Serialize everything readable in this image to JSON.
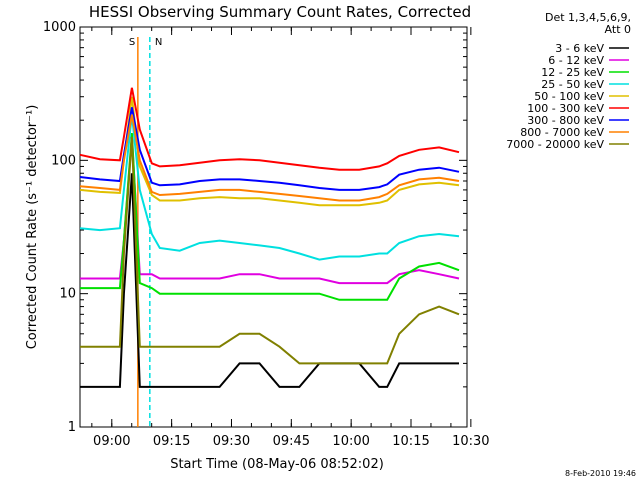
{
  "chart_data": {
    "type": "line",
    "title": "HESSI Observing Summary Count Rates, Corrected",
    "xlabel": "Start Time (08-May-06 08:52:02)",
    "ylabel": "Corrected Count Rate (s⁻¹ detector⁻¹)",
    "yscale": "log",
    "ylim": [
      1,
      1000
    ],
    "xlim_minutes": [
      0,
      97
    ],
    "x_tick_labels": [
      "09:00",
      "09:15",
      "09:30",
      "09:45",
      "10:00",
      "10:15",
      "10:30"
    ],
    "y_tick_labels": [
      "1",
      "10",
      "100",
      "1000"
    ],
    "legend_header": [
      "Det 1,3,4,5,6,9,",
      "Att 0"
    ],
    "legend_placement": "right",
    "footer": "8-Feb-2010 19:46",
    "markers": [
      {
        "label": "S",
        "x_minutes": 14.5,
        "color": "#ff8000"
      },
      {
        "label": "N",
        "x_minutes": 17.5,
        "color": "#00e0e0"
      }
    ],
    "series": [
      {
        "name": "3 - 6 keV",
        "color": "#000000",
        "x": [
          0,
          5,
          10,
          11,
          13,
          15,
          18,
          20,
          25,
          30,
          35,
          40,
          45,
          50,
          55,
          60,
          65,
          70,
          75,
          77,
          80,
          85,
          90,
          95
        ],
        "y": [
          2,
          2,
          2,
          10,
          80,
          2,
          2,
          2,
          2,
          2,
          2,
          3,
          3,
          2,
          2,
          3,
          3,
          3,
          2,
          2,
          3,
          3,
          3,
          3
        ]
      },
      {
        "name": "6 - 12 keV",
        "color": "#e000e0",
        "x": [
          0,
          5,
          10,
          11,
          13,
          15,
          18,
          20,
          25,
          30,
          35,
          40,
          45,
          50,
          55,
          60,
          65,
          70,
          75,
          77,
          80,
          85,
          90,
          95
        ],
        "y": [
          13,
          13,
          13,
          25,
          150,
          14,
          14,
          13,
          13,
          13,
          13,
          14,
          14,
          13,
          13,
          13,
          12,
          12,
          12,
          12,
          14,
          15,
          14,
          13
        ]
      },
      {
        "name": "12 - 25 keV",
        "color": "#00e000",
        "x": [
          0,
          5,
          10,
          11,
          13,
          15,
          18,
          20,
          25,
          30,
          35,
          40,
          45,
          50,
          55,
          60,
          65,
          70,
          75,
          77,
          80,
          85,
          90,
          95
        ],
        "y": [
          11,
          11,
          11,
          25,
          160,
          12,
          11,
          10,
          10,
          10,
          10,
          10,
          10,
          10,
          10,
          10,
          9,
          9,
          9,
          9,
          13,
          16,
          17,
          15
        ]
      },
      {
        "name": "25 - 50 keV",
        "color": "#00e0e0",
        "x": [
          0,
          5,
          10,
          11,
          13,
          15,
          18,
          20,
          25,
          30,
          35,
          40,
          45,
          50,
          55,
          60,
          65,
          70,
          75,
          77,
          80,
          85,
          90,
          95
        ],
        "y": [
          31,
          30,
          31,
          60,
          220,
          60,
          28,
          22,
          21,
          24,
          25,
          24,
          23,
          22,
          20,
          18,
          19,
          19,
          20,
          20,
          24,
          27,
          28,
          27
        ]
      },
      {
        "name": "50 - 100 keV",
        "color": "#e0c000",
        "x": [
          0,
          5,
          10,
          11,
          13,
          15,
          18,
          20,
          25,
          30,
          35,
          40,
          45,
          50,
          55,
          60,
          65,
          70,
          75,
          77,
          80,
          85,
          90,
          95
        ],
        "y": [
          60,
          58,
          57,
          100,
          300,
          90,
          55,
          50,
          50,
          52,
          53,
          52,
          52,
          50,
          48,
          46,
          46,
          46,
          48,
          50,
          60,
          66,
          68,
          65
        ]
      },
      {
        "name": "100 - 300 keV",
        "color": "#ff0000",
        "x": [
          0,
          5,
          10,
          11,
          13,
          15,
          18,
          20,
          25,
          30,
          35,
          40,
          45,
          50,
          55,
          60,
          65,
          70,
          75,
          77,
          80,
          85,
          90,
          95
        ],
        "y": [
          110,
          102,
          100,
          150,
          350,
          170,
          95,
          90,
          92,
          96,
          100,
          102,
          100,
          96,
          92,
          88,
          85,
          85,
          90,
          95,
          108,
          120,
          125,
          115
        ]
      },
      {
        "name": "300 - 800 keV",
        "color": "#0000ff",
        "x": [
          0,
          5,
          10,
          11,
          13,
          15,
          18,
          20,
          25,
          30,
          35,
          40,
          45,
          50,
          55,
          60,
          65,
          70,
          75,
          77,
          80,
          85,
          90,
          95
        ],
        "y": [
          75,
          72,
          70,
          110,
          250,
          120,
          68,
          65,
          66,
          70,
          72,
          72,
          70,
          68,
          65,
          62,
          60,
          60,
          63,
          66,
          78,
          85,
          88,
          82
        ]
      },
      {
        "name": "800 - 7000 keV",
        "color": "#ff8000",
        "x": [
          0,
          5,
          10,
          11,
          13,
          15,
          18,
          20,
          25,
          30,
          35,
          40,
          45,
          50,
          55,
          60,
          65,
          70,
          75,
          77,
          80,
          85,
          90,
          95
        ],
        "y": [
          64,
          62,
          60,
          100,
          220,
          100,
          58,
          55,
          56,
          58,
          60,
          60,
          58,
          56,
          54,
          52,
          50,
          50,
          53,
          56,
          65,
          72,
          74,
          70
        ]
      },
      {
        "name": "7000 - 20000 keV",
        "color": "#808000",
        "x": [
          0,
          5,
          10,
          11,
          13,
          15,
          18,
          20,
          25,
          30,
          35,
          40,
          45,
          50,
          55,
          60,
          65,
          70,
          75,
          77,
          80,
          85,
          90,
          95
        ],
        "y": [
          4,
          4,
          4,
          20,
          150,
          4,
          4,
          4,
          4,
          4,
          4,
          5,
          5,
          4,
          3,
          3,
          3,
          3,
          3,
          3,
          5,
          7,
          8,
          7
        ]
      }
    ]
  }
}
